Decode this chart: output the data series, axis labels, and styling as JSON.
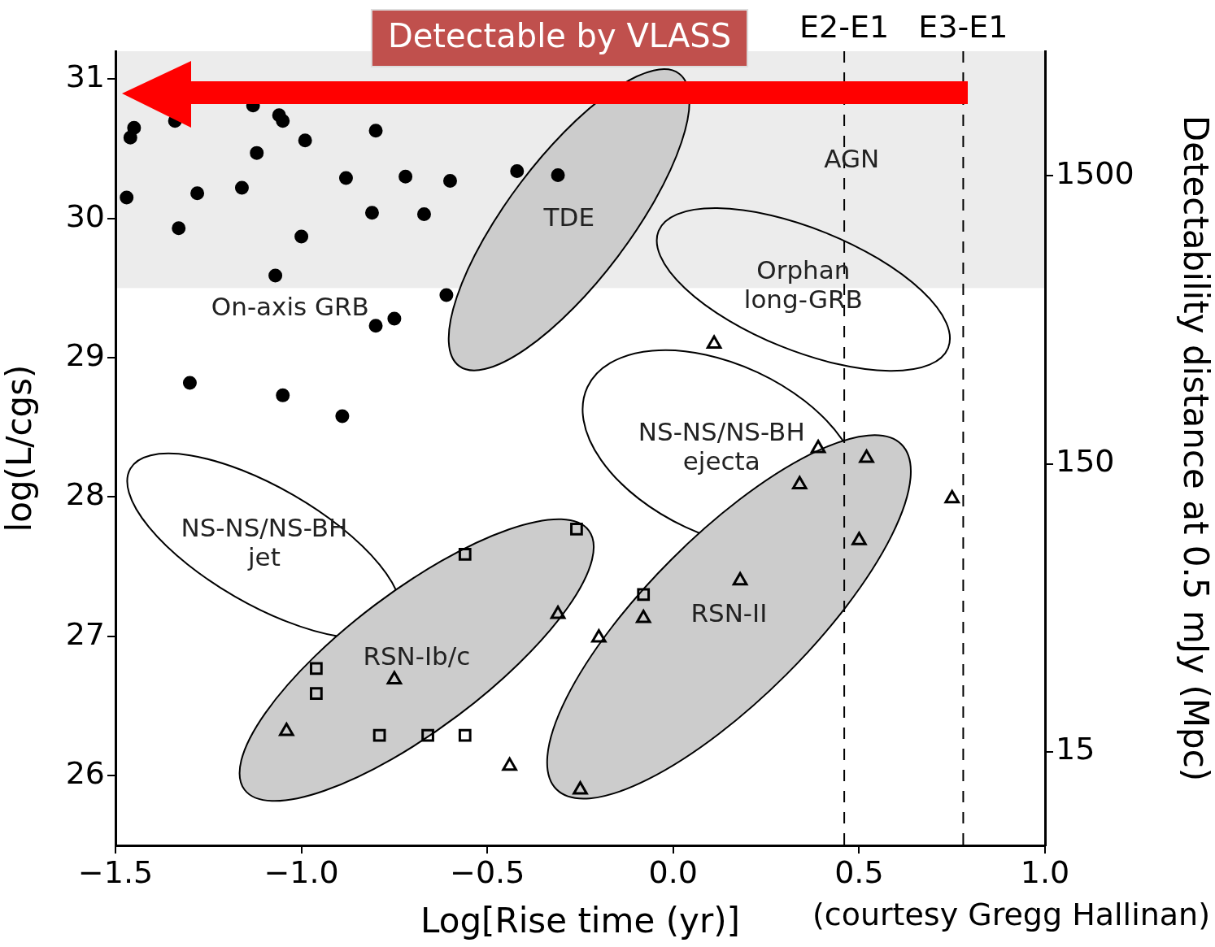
{
  "chart_data": {
    "type": "scatter",
    "xlabel": "Log[Rise time (yr)]",
    "ylabel": "log(L/cgs)",
    "y2label": "Detectability distance at 0.5 mJy (Mpc)",
    "xlim": [
      -1.5,
      1.0
    ],
    "xticks": [
      {
        "value": -1.5,
        "label": "−1.5"
      },
      {
        "value": -1.0,
        "label": "−1.0"
      },
      {
        "value": -0.5,
        "label": "−0.5"
      },
      {
        "value": 0,
        "label": "0.0"
      },
      {
        "value": 0.5,
        "label": "0.5"
      },
      {
        "value": 1.0,
        "label": "1.0"
      }
    ],
    "ylim": [
      25.5,
      31.2
    ],
    "yticks": [
      26,
      27,
      28,
      29,
      30,
      31
    ],
    "y2lim": [
      7.08,
      4070
    ],
    "y2ticks": [
      15,
      150,
      1500
    ],
    "log": "y2",
    "grid": false,
    "legend": false,
    "series": [
      {
        "color": "#000000",
        "marker": "circle",
        "x": [
          -1.45,
          -1.46,
          -1.47,
          -1.34,
          -1.13,
          -1.06,
          -1.05,
          -1.12,
          -1.28,
          -1.16,
          -1.33,
          -0.99,
          -1.0,
          -0.88,
          -0.8,
          -0.72,
          -0.81,
          -0.67,
          -0.6,
          -1.07,
          -0.61,
          -0.8,
          -0.75,
          -0.42,
          -0.31,
          -1.3,
          -1.05,
          -0.89
        ],
        "values": [
          30.65,
          30.58,
          30.15,
          30.7,
          30.81,
          30.74,
          30.7,
          30.47,
          30.18,
          30.22,
          29.93,
          30.56,
          29.87,
          30.29,
          30.63,
          30.3,
          30.04,
          30.03,
          30.27,
          29.59,
          29.45,
          29.23,
          29.28,
          30.34,
          30.31,
          28.82,
          28.73,
          28.58
        ]
      },
      {
        "color": "#000000",
        "marker": "square",
        "x": [
          -0.26,
          -0.56,
          -0.96,
          -0.96,
          -0.79,
          -0.66,
          -0.56,
          -0.08
        ],
        "values": [
          27.77,
          27.59,
          26.77,
          26.59,
          26.29,
          26.29,
          26.29,
          27.3
        ]
      },
      {
        "color": "#000000",
        "marker": "triangle",
        "x": [
          0.11,
          0.39,
          0.52,
          0.34,
          0.75,
          0.5,
          0.18,
          -0.31,
          -0.08,
          -0.2,
          -0.75,
          -1.04,
          -0.44,
          -0.25
        ],
        "values": [
          29.1,
          28.35,
          28.28,
          28.09,
          27.99,
          27.69,
          27.4,
          27.16,
          27.13,
          26.99,
          26.69,
          26.32,
          26.07,
          25.9
        ]
      }
    ],
    "ref_lines": [
      {
        "axis": "x",
        "value": 0.46,
        "label": "E2-E1",
        "line_style": "dashed",
        "color": "#000000"
      },
      {
        "axis": "x",
        "value": 0.78,
        "label": "E3-E1",
        "line_style": "dashed",
        "color": "#000000"
      }
    ],
    "bands": [
      {
        "axis": "y",
        "from": 29.5,
        "to": 31.2,
        "color": "#ececec"
      }
    ],
    "annotations": [
      "Detectable by VLASS",
      "(courtesy Gregg Hallinan)",
      "AGN",
      "TDE",
      "Orphan\nlong-GRB",
      "On-axis GRB",
      "NS-NS/NS-BH\nejecta",
      "NS-NS/NS-BH\njet",
      "RSN-Ib/c",
      "RSN-II"
    ]
  }
}
